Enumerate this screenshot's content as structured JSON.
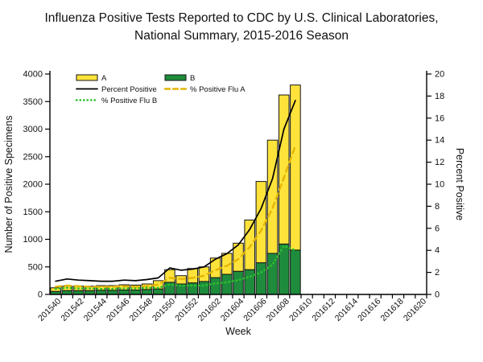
{
  "title_line1": "Influenza Positive Tests Reported to CDC by U.S. Clinical Laboratories,",
  "title_line2": "National Summary, 2015-2016 Season",
  "chart_data": {
    "type": "combo-stacked-bar-line",
    "xlabel": "Week",
    "y_left_label": "Number of Positive Specimens",
    "y_right_label": "Percent Positive",
    "y_left_min": 0,
    "y_left_max": 4000,
    "y_left_step": 500,
    "y_right_min": 0,
    "y_right_max": 20,
    "y_right_step": 2,
    "x_slots": [
      "201540",
      "201541",
      "201542",
      "201543",
      "201544",
      "201545",
      "201546",
      "201547",
      "201548",
      "201549",
      "201550",
      "201551",
      "201552",
      "201601",
      "201602",
      "201603",
      "201604",
      "201605",
      "201606",
      "201607",
      "201608",
      "201609",
      "201610",
      "201611",
      "201612",
      "201613",
      "201614",
      "201615",
      "201616",
      "201617",
      "201618",
      "201619",
      "201620"
    ],
    "bar_weeks": [
      "201540",
      "201541",
      "201542",
      "201543",
      "201544",
      "201545",
      "201546",
      "201547",
      "201548",
      "201549",
      "201550",
      "201551",
      "201552",
      "201601",
      "201602",
      "201603",
      "201604",
      "201605",
      "201606",
      "201607",
      "201608",
      "201609"
    ],
    "series": [
      {
        "name": "A",
        "type": "bar",
        "color": "#FFE33B",
        "values": [
          65,
          80,
          80,
          80,
          85,
          85,
          95,
          90,
          100,
          150,
          230,
          150,
          260,
          265,
          355,
          380,
          510,
          900,
          1475,
          2055,
          2705,
          2995
        ]
      },
      {
        "name": "B",
        "type": "bar",
        "color": "#1E8C3C",
        "values": [
          55,
          70,
          70,
          70,
          75,
          75,
          80,
          80,
          90,
          100,
          220,
          190,
          210,
          235,
          305,
          365,
          420,
          450,
          575,
          745,
          915,
          805
        ]
      },
      {
        "name": "Percent Positive",
        "type": "line",
        "style": "solid",
        "color": "#000000",
        "values": [
          1.2,
          1.4,
          1.3,
          1.25,
          1.2,
          1.2,
          1.3,
          1.25,
          1.35,
          1.5,
          2.4,
          2.2,
          2.3,
          2.5,
          3.2,
          3.7,
          4.5,
          5.9,
          7.8,
          10.5,
          15.0,
          17.6
        ]
      },
      {
        "name": "% Positive Flu A",
        "type": "line",
        "style": "dashed",
        "color": "#E3B505",
        "values": [
          0.7,
          0.8,
          0.75,
          0.7,
          0.7,
          0.7,
          0.75,
          0.7,
          0.75,
          0.9,
          1.5,
          1.4,
          1.5,
          1.7,
          2.2,
          2.6,
          3.2,
          4.3,
          5.8,
          7.8,
          10.6,
          13.5
        ]
      },
      {
        "name": "% Positive Flu B",
        "type": "line",
        "style": "dotted",
        "color": "#2FBF2F",
        "values": [
          0.5,
          0.6,
          0.55,
          0.55,
          0.5,
          0.5,
          0.55,
          0.55,
          0.6,
          0.6,
          0.9,
          0.8,
          0.8,
          0.8,
          1.0,
          1.1,
          1.3,
          1.6,
          2.0,
          2.7,
          4.4,
          4.0
        ]
      }
    ],
    "legend": [
      {
        "label": "A",
        "swatch": "bar",
        "color": "#FFE33B",
        "col": 0,
        "row": 0
      },
      {
        "label": "B",
        "swatch": "bar",
        "color": "#1E8C3C",
        "col": 1,
        "row": 0
      },
      {
        "label": "Percent Positive",
        "swatch": "solid",
        "color": "#000000",
        "col": 0,
        "row": 1
      },
      {
        "label": "% Positive Flu A",
        "swatch": "dashed",
        "color": "#E3B505",
        "col": 1,
        "row": 1
      },
      {
        "label": "% Positive Flu B",
        "swatch": "dotted",
        "color": "#2FBF2F",
        "col": 0,
        "row": 2
      }
    ],
    "grid": "off",
    "legend_position": "top-left-inside"
  },
  "colors": {
    "background": "#ffffff",
    "axis": "#000000",
    "bar_border": "#141414"
  }
}
